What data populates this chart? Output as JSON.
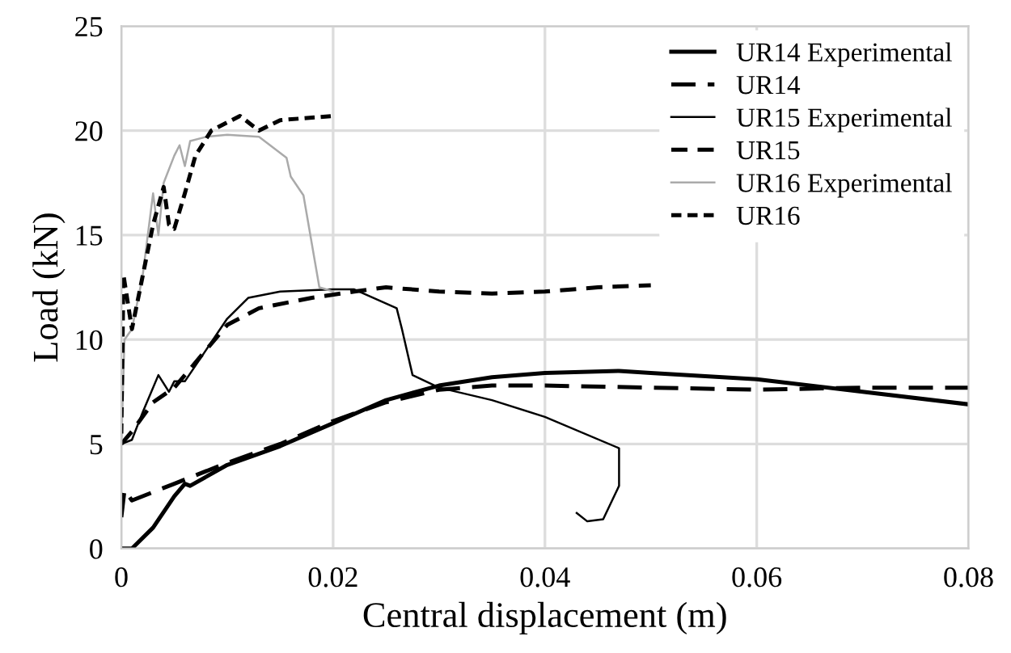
{
  "chart_data": {
    "type": "line",
    "xlabel": "Central displacement (m)",
    "ylabel": "Load (kN)",
    "xlim": [
      0,
      0.08
    ],
    "xticks": [
      0,
      0.02,
      0.04,
      0.06,
      0.08
    ],
    "ylim": [
      0,
      25
    ],
    "yticks": [
      0,
      5,
      10,
      15,
      20,
      25
    ],
    "grid": true,
    "legend": "top right",
    "marker": "none",
    "series": [
      {
        "name": "UR14 Experimental",
        "color": "#000000",
        "line_style": "solid",
        "x": [
          0,
          0.001,
          0.003,
          0.005,
          0.006,
          0.0065,
          0.01,
          0.015,
          0.02,
          0.025,
          0.03,
          0.035,
          0.04,
          0.047,
          0.05,
          0.06,
          0.07,
          0.08
        ],
        "values": [
          0,
          0,
          1.0,
          2.5,
          3.1,
          3.0,
          4.0,
          4.9,
          6.0,
          7.1,
          7.8,
          8.2,
          8.4,
          8.5,
          8.4,
          8.1,
          7.5,
          6.9
        ]
      },
      {
        "name": "UR14",
        "color": "#000000",
        "line_style": "dashed",
        "x": [
          0,
          0.0003,
          0.001,
          0.003,
          0.005,
          0.01,
          0.015,
          0.02,
          0.025,
          0.03,
          0.035,
          0.04,
          0.05,
          0.06,
          0.07,
          0.08
        ],
        "values": [
          1.5,
          2.8,
          2.3,
          2.7,
          3.1,
          4.1,
          5.0,
          6.1,
          7.0,
          7.6,
          7.8,
          7.8,
          7.7,
          7.6,
          7.7,
          7.7
        ]
      },
      {
        "name": "UR15 Experimental",
        "color": "#000000",
        "line_style": "solid",
        "x": [
          0,
          0.001,
          0.002,
          0.0035,
          0.0045,
          0.005,
          0.006,
          0.008,
          0.01,
          0.012,
          0.015,
          0.02,
          0.022,
          0.026,
          0.0265,
          0.0275,
          0.03,
          0.035,
          0.04,
          0.047,
          0.047,
          0.0455,
          0.044,
          0.043
        ],
        "values": [
          5.0,
          5.2,
          6.5,
          8.3,
          7.5,
          8.0,
          8.0,
          9.5,
          11.0,
          12.0,
          12.3,
          12.4,
          12.4,
          11.5,
          10.5,
          8.3,
          7.7,
          7.1,
          6.3,
          4.8,
          3.0,
          1.4,
          1.3,
          1.7
        ]
      },
      {
        "name": "UR15",
        "color": "#000000",
        "line_style": "dashed",
        "x": [
          0,
          0.001,
          0.003,
          0.005,
          0.008,
          0.01,
          0.013,
          0.018,
          0.022,
          0.025,
          0.03,
          0.035,
          0.04,
          0.045,
          0.05
        ],
        "values": [
          5.0,
          5.6,
          7.0,
          7.7,
          9.5,
          10.7,
          11.5,
          12.0,
          12.3,
          12.5,
          12.3,
          12.2,
          12.3,
          12.5,
          12.6
        ]
      },
      {
        "name": "UR16 Experimental",
        "color": "#aaaaaa",
        "line_style": "solid",
        "x": [
          0,
          0.0003,
          0.001,
          0.002,
          0.003,
          0.0035,
          0.004,
          0.005,
          0.0055,
          0.006,
          0.0065,
          0.008,
          0.01,
          0.013,
          0.0156,
          0.016,
          0.0172,
          0.0187,
          0.02
        ],
        "values": [
          5,
          10,
          10.5,
          13,
          17,
          15,
          17.5,
          18.8,
          19.3,
          18.3,
          19.5,
          19.7,
          19.8,
          19.7,
          18.7,
          17.8,
          16.9,
          12.5,
          12.3
        ]
      },
      {
        "name": "UR16",
        "color": "#000000",
        "line_style": "dashed",
        "x": [
          0,
          0.0002,
          0.001,
          0.002,
          0.003,
          0.004,
          0.0045,
          0.005,
          0.006,
          0.007,
          0.0085,
          0.0112,
          0.013,
          0.015,
          0.02
        ],
        "values": [
          5.5,
          13.1,
          10.5,
          13.0,
          15.5,
          17.3,
          15.5,
          15.3,
          17.0,
          18.8,
          20.0,
          20.7,
          20.0,
          20.5,
          20.7
        ]
      }
    ]
  }
}
